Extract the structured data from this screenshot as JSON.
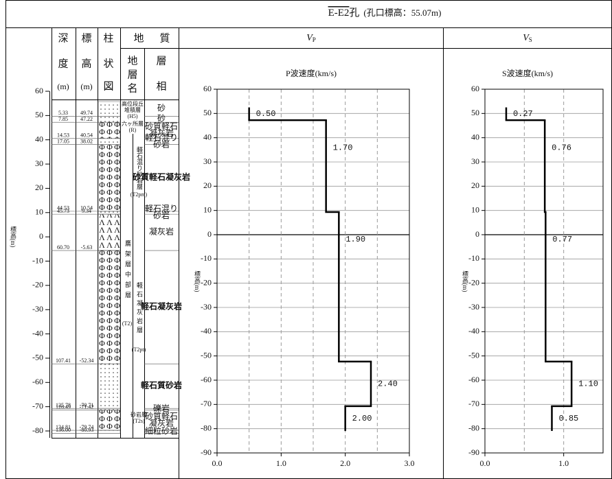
{
  "title": {
    "hole": "E-E2",
    "suffix": "孔",
    "collar": "(孔口標高：55.07m)"
  },
  "log": {
    "axis_label": "標高(m)",
    "ticks": [
      60,
      50,
      40,
      30,
      20,
      10,
      0,
      -10,
      -20,
      -30,
      -40,
      -50,
      -60,
      -70,
      -80
    ],
    "depth_header": [
      "深",
      "度",
      "(m)"
    ],
    "elevation_header": [
      "標",
      "高",
      "(m)"
    ],
    "column_header": [
      "柱",
      "状",
      "図"
    ],
    "geology_header": [
      "地",
      "質"
    ],
    "formation_header": [
      "地",
      "層",
      "名"
    ],
    "facies_header": [
      "層",
      "相"
    ],
    "formations": [
      "高位段丘",
      "堆積層",
      "(H5)",
      "六ヶ所層",
      "(R)",
      "鷹架層中部層",
      "(T2)",
      "軽石混り砂岩層",
      "(T2pm)",
      "軽石凝灰岩層",
      "(T2pt)",
      "砂岩層",
      "(T2s)"
    ],
    "layers": [
      {
        "depth": "5.33",
        "elevation": "49.74",
        "facies": "砂"
      },
      {
        "depth": "7.85",
        "elevation": "47.22",
        "facies": "砂"
      },
      {
        "depth": "14.53",
        "elevation": "40.54",
        "facies": "砂質軽石凝灰岩"
      },
      {
        "depth": "17.05",
        "elevation": "38.02",
        "facies": "軽石混り砂岩"
      },
      {
        "depth": "44.53",
        "elevation": "10.54",
        "facies": "砂質軽石凝灰岩"
      },
      {
        "depth": "45.73",
        "elevation": "9.34",
        "facies": "軽石混り砂岩"
      },
      {
        "depth": "60.70",
        "elevation": "-5.63",
        "facies": "凝灰岩"
      },
      {
        "depth": "107.41",
        "elevation": "-52.34",
        "facies": "軽石凝灰岩"
      },
      {
        "depth": "125.78",
        "elevation": "-70.71",
        "facies": "軽石質砂岩"
      },
      {
        "depth": "126.49",
        "elevation": "-71.42",
        "facies": "礫岩"
      },
      {
        "depth": "134.81",
        "elevation": "-79.74",
        "facies": "砂質軽石凝灰岩"
      },
      {
        "depth": "136.00",
        "elevation": "-80.93",
        "facies": "細粒砂岩"
      }
    ]
  },
  "chart_data": [
    {
      "type": "step",
      "header": {
        "symbol": "V",
        "subscript": "P"
      },
      "title": "P波速度(km/s)",
      "ylabel": "標高(m)",
      "values": [
        0.5,
        1.7,
        1.9,
        2.4,
        2.0
      ],
      "value_labels": [
        "0.50",
        "1.70",
        "1.90",
        "2.40",
        "2.00"
      ],
      "boundaries": [
        52.5,
        47.22,
        9.34,
        -52.34,
        -70.71,
        -80.93
      ],
      "color": "#000000",
      "xlim": [
        0,
        3
      ],
      "xticks": [
        {
          "value": 0,
          "label": "0.0"
        },
        {
          "value": 1,
          "label": "1.0"
        },
        {
          "value": 2,
          "label": "2.0"
        },
        {
          "value": 3,
          "label": "3.0"
        }
      ],
      "xgrid": [
        0.5,
        1,
        1.5,
        2,
        2.5
      ],
      "ylim": [
        -90,
        60
      ],
      "yticks": [
        60,
        50,
        40,
        30,
        20,
        10,
        0,
        -10,
        -20,
        -30,
        -40,
        -50,
        -60,
        -70,
        -80,
        -90
      ],
      "grid": true
    },
    {
      "type": "step",
      "header": {
        "symbol": "V",
        "subscript": "S"
      },
      "title": "S波速度(km/s)",
      "ylabel": "標高(m)",
      "values": [
        0.27,
        0.76,
        0.77,
        1.1,
        0.85
      ],
      "value_labels": [
        "0.27",
        "0.76",
        "0.77",
        "1.10",
        "0.85"
      ],
      "boundaries": [
        52.5,
        47.22,
        9.34,
        -52.34,
        -70.71,
        -80.93
      ],
      "color": "#000000",
      "xlim": [
        0,
        1.5
      ],
      "xticks": [
        {
          "value": 0,
          "label": "0.0"
        },
        {
          "value": 1,
          "label": "1.0"
        }
      ],
      "xgrid": [
        0.5,
        1
      ],
      "ylim": [
        -90,
        60
      ],
      "yticks": [
        60,
        50,
        40,
        30,
        20,
        10,
        0,
        -10,
        -20,
        -30,
        -40,
        -50,
        -60,
        -70,
        -80,
        -90
      ],
      "grid": true
    }
  ]
}
